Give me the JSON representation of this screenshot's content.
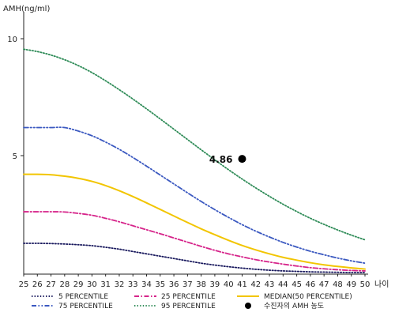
{
  "chart_data": {
    "type": "line",
    "title": "",
    "ylabel": "AMH(ng/ml)",
    "xlabel": "나이",
    "xlim": [
      25,
      50
    ],
    "ylim": [
      0,
      11
    ],
    "x": [
      25,
      26,
      27,
      28,
      29,
      30,
      31,
      32,
      33,
      34,
      35,
      36,
      37,
      38,
      39,
      40,
      41,
      42,
      43,
      44,
      45,
      46,
      47,
      48,
      49,
      50
    ],
    "x_ticks": [
      "25",
      "26",
      "27",
      "28",
      "29",
      "30",
      "31",
      "32",
      "33",
      "34",
      "35",
      "36",
      "37",
      "38",
      "39",
      "40",
      "41",
      "42",
      "43",
      "44",
      "45",
      "46",
      "47",
      "48",
      "49",
      "50"
    ],
    "y_ticks": [
      5,
      10
    ],
    "grid": false,
    "legend_position": "bottom",
    "series": [
      {
        "name": "5 PERCENTILE",
        "color": "#1a1a5e",
        "style": "dotted",
        "values": [
          1.25,
          1.25,
          1.24,
          1.22,
          1.19,
          1.15,
          1.08,
          1.0,
          0.9,
          0.8,
          0.7,
          0.6,
          0.5,
          0.4,
          0.32,
          0.25,
          0.19,
          0.14,
          0.1,
          0.07,
          0.05,
          0.03,
          0.02,
          0.01,
          0.0,
          0.0
        ]
      },
      {
        "name": "25 PERCENTILE",
        "color": "#d6248a",
        "style": "dash-dot",
        "values": [
          2.6,
          2.6,
          2.6,
          2.59,
          2.53,
          2.45,
          2.32,
          2.17,
          2.0,
          1.83,
          1.66,
          1.48,
          1.3,
          1.12,
          0.95,
          0.8,
          0.67,
          0.55,
          0.45,
          0.36,
          0.28,
          0.21,
          0.16,
          0.12,
          0.09,
          0.07
        ]
      },
      {
        "name": "MEDIAN(50 PERCENTILE)",
        "color": "#f2c500",
        "style": "solid",
        "values": [
          4.2,
          4.2,
          4.18,
          4.12,
          4.03,
          3.9,
          3.72,
          3.5,
          3.25,
          2.98,
          2.7,
          2.42,
          2.14,
          1.87,
          1.62,
          1.38,
          1.16,
          0.97,
          0.8,
          0.65,
          0.53,
          0.42,
          0.33,
          0.26,
          0.2,
          0.15
        ]
      },
      {
        "name": "75 PERCENTILE",
        "color": "#3a58c0",
        "style": "dash-dot-dot",
        "values": [
          6.2,
          6.2,
          6.2,
          6.2,
          6.05,
          5.85,
          5.58,
          5.27,
          4.92,
          4.55,
          4.17,
          3.79,
          3.41,
          3.04,
          2.69,
          2.36,
          2.05,
          1.77,
          1.52,
          1.29,
          1.09,
          0.91,
          0.76,
          0.62,
          0.5,
          0.4
        ]
      },
      {
        "name": "95 PERCENTILE",
        "color": "#2e8b57",
        "style": "dotted",
        "values": [
          9.55,
          9.45,
          9.3,
          9.1,
          8.85,
          8.55,
          8.2,
          7.82,
          7.42,
          7.0,
          6.57,
          6.13,
          5.69,
          5.25,
          4.82,
          4.4,
          4.0,
          3.62,
          3.26,
          2.92,
          2.61,
          2.32,
          2.06,
          1.82,
          1.6,
          1.4
        ]
      }
    ],
    "marker": {
      "name": "수진자의 AMH 농도",
      "x": 41,
      "y": 4.86,
      "label": "4.86",
      "color": "#000000"
    }
  }
}
